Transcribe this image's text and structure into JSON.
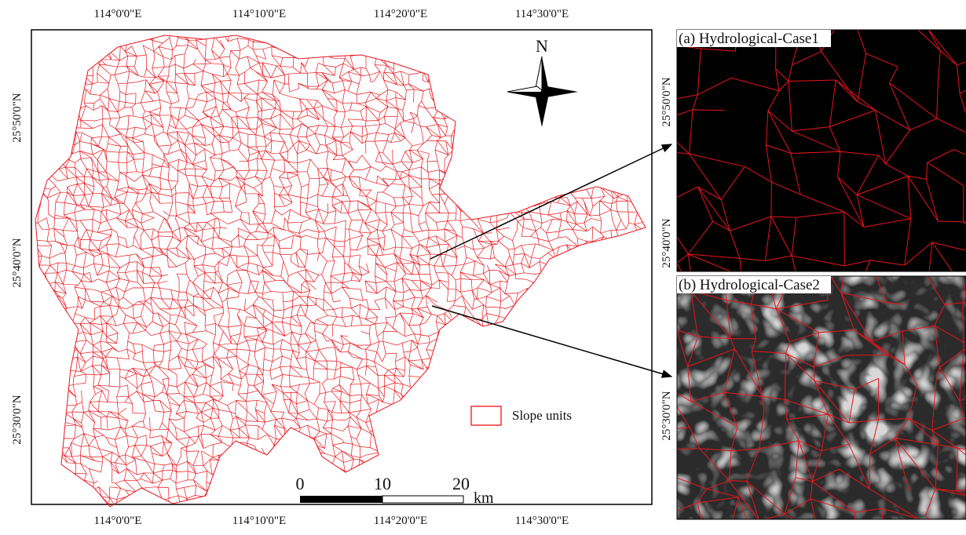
{
  "map": {
    "x_labels": [
      "114°0'0\"E",
      "114°10'0\"E",
      "114°20'0\"E",
      "114°30'0\"E"
    ],
    "y_labels": [
      "25°50'0\"N",
      "25°40'0\"N",
      "25°30'0\"N"
    ],
    "north": "N",
    "legend": "Slope units",
    "scale": {
      "ticks": [
        "0",
        "10",
        "20"
      ],
      "unit": "km"
    }
  },
  "panels": [
    {
      "title": "(a) Hydrological-Case1",
      "y_labels": [
        "25°50'0\"N",
        "25°40'0\"N"
      ]
    },
    {
      "title": "(b) Hydrological-Case2",
      "y_labels": [
        "25°30'0\"N"
      ]
    }
  ]
}
